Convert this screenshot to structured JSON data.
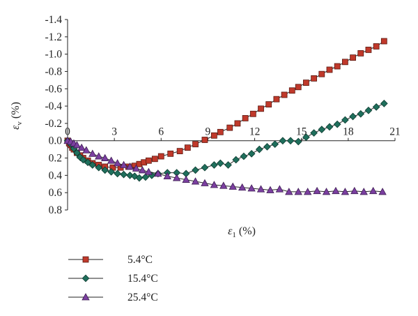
{
  "chart_data": {
    "type": "line",
    "title": "",
    "xlabel": {
      "symbol": "ε",
      "sub": "1",
      "unit": "(%)"
    },
    "ylabel": {
      "symbol": "ε",
      "sub": "v",
      "unit": "(%)"
    },
    "xlim": [
      0,
      21
    ],
    "ylim": [
      0.8,
      -1.4
    ],
    "x_ticks": [
      "0",
      "3",
      "6",
      "9",
      "12",
      "15",
      "18",
      "21"
    ],
    "y_ticks": [
      "-1.4",
      "-1.2",
      "-1.0",
      "-0.8",
      "-0.6",
      "-0.4",
      "-0.2",
      "0.0",
      "0.2",
      "0.4",
      "0.6",
      "0.8"
    ],
    "grid": false,
    "legend_position": "bottom-left",
    "series": [
      {
        "name": "5.4°C",
        "color": "#c0392b",
        "marker": "square",
        "x": [
          0,
          0.1,
          0.2,
          0.3,
          0.4,
          0.6,
          0.8,
          1.0,
          1.3,
          1.6,
          2.0,
          2.4,
          2.9,
          3.4,
          3.9,
          4.3,
          4.6,
          4.9,
          5.2,
          5.6,
          6.0,
          6.6,
          7.2,
          7.7,
          8.2,
          8.8,
          9.4,
          9.8,
          10.4,
          10.9,
          11.4,
          11.9,
          12.4,
          12.9,
          13.4,
          13.9,
          14.4,
          14.8,
          15.3,
          15.8,
          16.3,
          16.8,
          17.3,
          17.8,
          18.3,
          18.8,
          19.3,
          19.8,
          20.3
        ],
        "y": [
          0.0,
          0.03,
          0.05,
          0.08,
          0.1,
          0.14,
          0.17,
          0.2,
          0.23,
          0.26,
          0.28,
          0.3,
          0.31,
          0.31,
          0.3,
          0.29,
          0.27,
          0.25,
          0.23,
          0.21,
          0.18,
          0.15,
          0.12,
          0.08,
          0.04,
          -0.01,
          -0.06,
          -0.1,
          -0.15,
          -0.2,
          -0.26,
          -0.31,
          -0.37,
          -0.42,
          -0.48,
          -0.53,
          -0.58,
          -0.62,
          -0.67,
          -0.72,
          -0.77,
          -0.82,
          -0.86,
          -0.91,
          -0.96,
          -1.01,
          -1.05,
          -1.09,
          -1.15
        ]
      },
      {
        "name": "15.4°C",
        "color": "#1f6f5c",
        "marker": "diamond",
        "x": [
          0,
          0.2,
          0.4,
          0.6,
          0.8,
          1.0,
          1.3,
          1.6,
          2.0,
          2.4,
          2.8,
          3.2,
          3.6,
          4.0,
          4.3,
          4.6,
          5.0,
          5.4,
          5.8,
          6.4,
          7.0,
          7.6,
          8.2,
          8.8,
          9.4,
          9.8,
          10.3,
          10.8,
          11.3,
          11.8,
          12.3,
          12.8,
          13.3,
          13.8,
          14.3,
          14.8,
          15.3,
          15.8,
          16.3,
          16.8,
          17.3,
          17.8,
          18.3,
          18.8,
          19.3,
          19.8,
          20.3
        ],
        "y": [
          0.0,
          0.04,
          0.09,
          0.14,
          0.19,
          0.22,
          0.25,
          0.28,
          0.31,
          0.34,
          0.36,
          0.38,
          0.39,
          0.4,
          0.41,
          0.43,
          0.42,
          0.4,
          0.38,
          0.37,
          0.37,
          0.38,
          0.34,
          0.31,
          0.28,
          0.26,
          0.28,
          0.22,
          0.18,
          0.15,
          0.1,
          0.07,
          0.04,
          0.0,
          0.0,
          0.01,
          -0.04,
          -0.09,
          -0.13,
          -0.16,
          -0.19,
          -0.24,
          -0.28,
          -0.31,
          -0.35,
          -0.39,
          -0.43
        ]
      },
      {
        "name": "25.4°C",
        "color": "#7b3fa0",
        "marker": "triangle",
        "x": [
          0,
          0.2,
          0.4,
          0.6,
          0.9,
          1.2,
          1.6,
          2.0,
          2.4,
          2.8,
          3.2,
          3.6,
          4.0,
          4.4,
          4.8,
          5.2,
          5.8,
          6.4,
          7.0,
          7.6,
          8.2,
          8.8,
          9.4,
          10.0,
          10.6,
          11.2,
          11.8,
          12.4,
          13.0,
          13.6,
          14.2,
          14.8,
          15.4,
          16.0,
          16.6,
          17.2,
          17.8,
          18.4,
          19.0,
          19.6,
          20.2
        ],
        "y": [
          0.0,
          0.01,
          0.03,
          0.05,
          0.08,
          0.11,
          0.15,
          0.18,
          0.2,
          0.23,
          0.26,
          0.28,
          0.3,
          0.32,
          0.34,
          0.36,
          0.38,
          0.41,
          0.43,
          0.45,
          0.47,
          0.49,
          0.51,
          0.52,
          0.53,
          0.54,
          0.55,
          0.56,
          0.57,
          0.56,
          0.59,
          0.59,
          0.59,
          0.58,
          0.59,
          0.58,
          0.59,
          0.58,
          0.59,
          0.58,
          0.59
        ]
      }
    ]
  }
}
